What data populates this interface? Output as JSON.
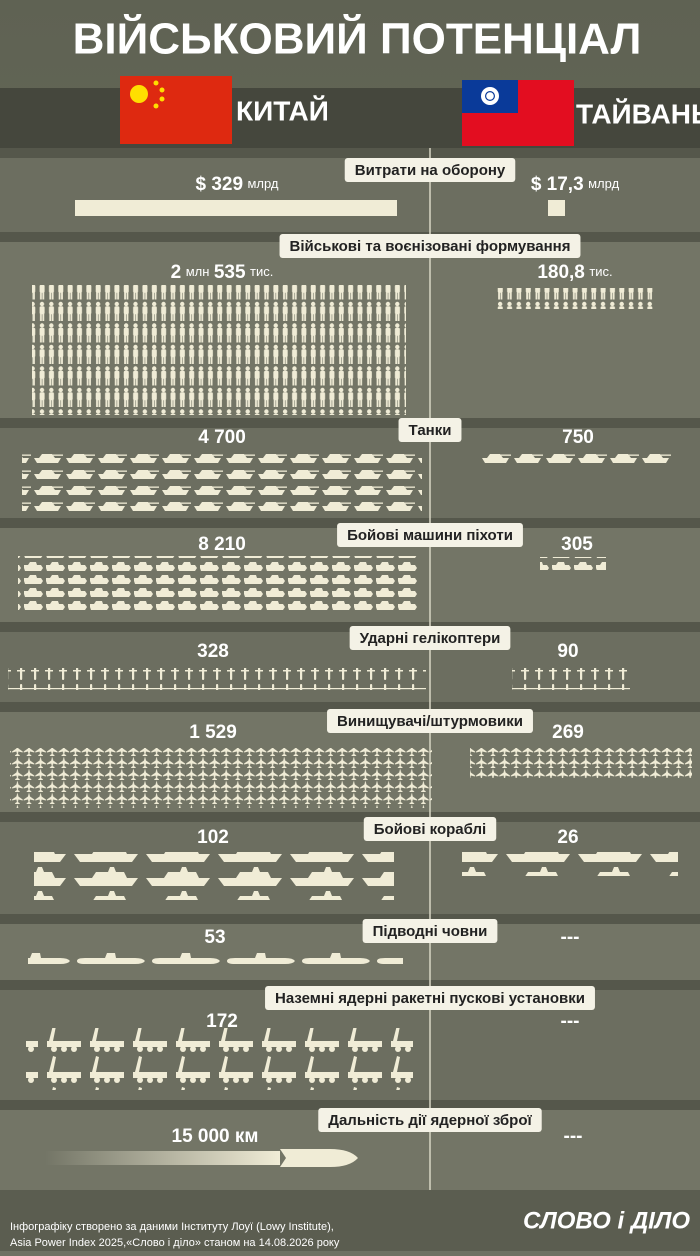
{
  "header": {
    "title": "ВІЙСЬКОВИЙ ПОТЕНЦІАЛ",
    "country_left": "КИТАЙ",
    "country_right": "ТАЙВАНЬ"
  },
  "sections": [
    {
      "label": "Витрати на оборону",
      "left": [
        "$ 329",
        "млрд"
      ],
      "right": [
        "$ 17,3",
        "млрд"
      ]
    },
    {
      "label": "Військові та воєнізовані формування",
      "left": [
        "2",
        "млн",
        "535",
        "тис."
      ],
      "right": [
        "180,8",
        "тис."
      ]
    },
    {
      "label": "Танки",
      "left": [
        "4 700"
      ],
      "right": [
        "750"
      ]
    },
    {
      "label": "Бойові машини піхоти",
      "left": [
        "8 210"
      ],
      "right": [
        "305"
      ]
    },
    {
      "label": "Ударні гелікоптери",
      "left": [
        "328"
      ],
      "right": [
        "90"
      ]
    },
    {
      "label": "Винищувачі/штурмовики",
      "left": [
        "1 529"
      ],
      "right": [
        "269"
      ]
    },
    {
      "label": "Бойові кораблі",
      "left": [
        "102"
      ],
      "right": [
        "26"
      ]
    },
    {
      "label": "Підводні човни",
      "left": [
        "53"
      ],
      "right": [
        "---"
      ]
    },
    {
      "label": "Наземні ядерні ракетні пускові установки",
      "left": [
        "172"
      ],
      "right": [
        "---"
      ]
    },
    {
      "label": "Дальність дії ядерної зброї",
      "left": [
        "15 000 км"
      ],
      "right": [
        "---"
      ]
    }
  ],
  "footer": {
    "source": [
      "Інфографіку створено за даними Інституту Лоуї (Lowy Institute),",
      "Asia Power Index 2025,«Слово і діло» станом на 14.08.2026 року"
    ],
    "logo": "СЛОВО і ДІЛО"
  }
}
